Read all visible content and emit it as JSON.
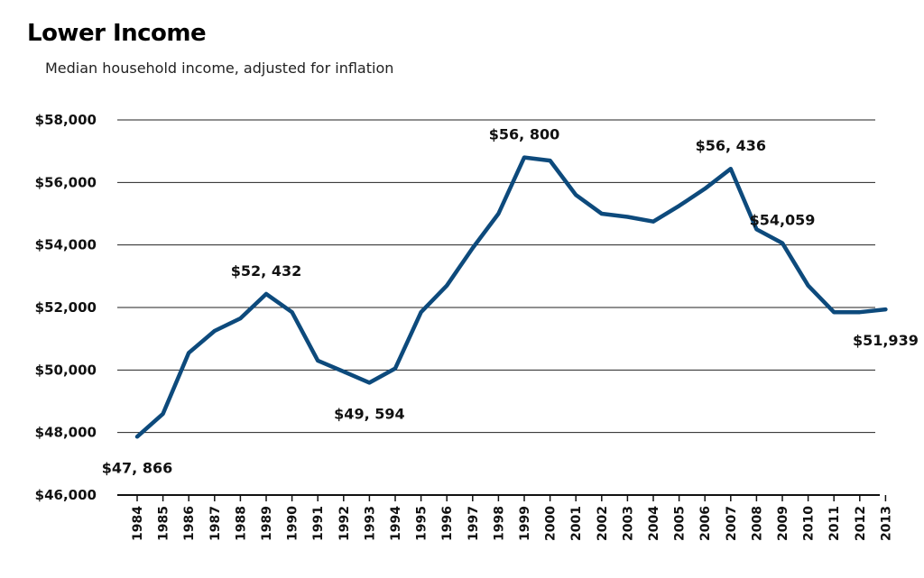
{
  "chart_data": {
    "type": "line",
    "title": "Lower Income",
    "subtitle": "Median household income, adjusted for inflation",
    "xlabel": "",
    "ylabel": "",
    "ylim": [
      46000,
      58000
    ],
    "yticks": [
      "$58,000",
      "$56,000",
      "$54,000",
      "$52,000",
      "$50,000",
      "$48,000",
      "$46,000"
    ],
    "ytick_values": [
      58000,
      56000,
      54000,
      52000,
      50000,
      48000,
      46000
    ],
    "x_tick_labels": [
      "1984",
      "1985",
      "1986",
      "1987",
      "1988",
      "1989",
      "1990",
      "1991",
      "1992",
      "1993",
      "1994",
      "1995",
      "1996",
      "1997",
      "1998",
      "1999",
      "2000",
      "2001",
      "2002",
      "2003",
      "2004",
      "2005",
      "2006",
      "2007",
      "2008",
      "2009",
      "2010",
      "2011",
      "2012",
      "2013"
    ],
    "grid": true,
    "line_color": "#0d4a7c",
    "series": [
      {
        "x": [
          1984,
          1985,
          1986,
          1987,
          1988,
          1989,
          1990,
          1991,
          1992,
          1993,
          1994,
          1995,
          1996,
          1997,
          1998,
          1999,
          2000,
          2001,
          2002,
          2003,
          2004,
          2005,
          2006,
          2007,
          2008,
          2009,
          2010,
          2011,
          2012,
          2013
        ],
        "values": [
          47866,
          48600,
          50550,
          51250,
          51650,
          52432,
          51850,
          50300,
          49950,
          49594,
          50050,
          51850,
          52700,
          53900,
          55000,
          56800,
          56700,
          55600,
          55000,
          54900,
          54750,
          55250,
          55800,
          56436,
          54500,
          54059,
          52700,
          51850,
          51850,
          51939
        ]
      }
    ],
    "annotations": [
      {
        "x": 1984,
        "y": 47866,
        "text": "$47, 866",
        "pos": "below"
      },
      {
        "x": 1989,
        "y": 52432,
        "text": "$52, 432",
        "pos": "above"
      },
      {
        "x": 1993,
        "y": 49594,
        "text": "$49, 594",
        "pos": "below"
      },
      {
        "x": 1999,
        "y": 56800,
        "text": "$56, 800",
        "pos": "above"
      },
      {
        "x": 2007,
        "y": 56436,
        "text": "$56, 436",
        "pos": "above"
      },
      {
        "x": 2009,
        "y": 54059,
        "text": "$54,059",
        "pos": "above"
      },
      {
        "x": 2013,
        "y": 51939,
        "text": "$51,939",
        "pos": "below"
      }
    ]
  }
}
